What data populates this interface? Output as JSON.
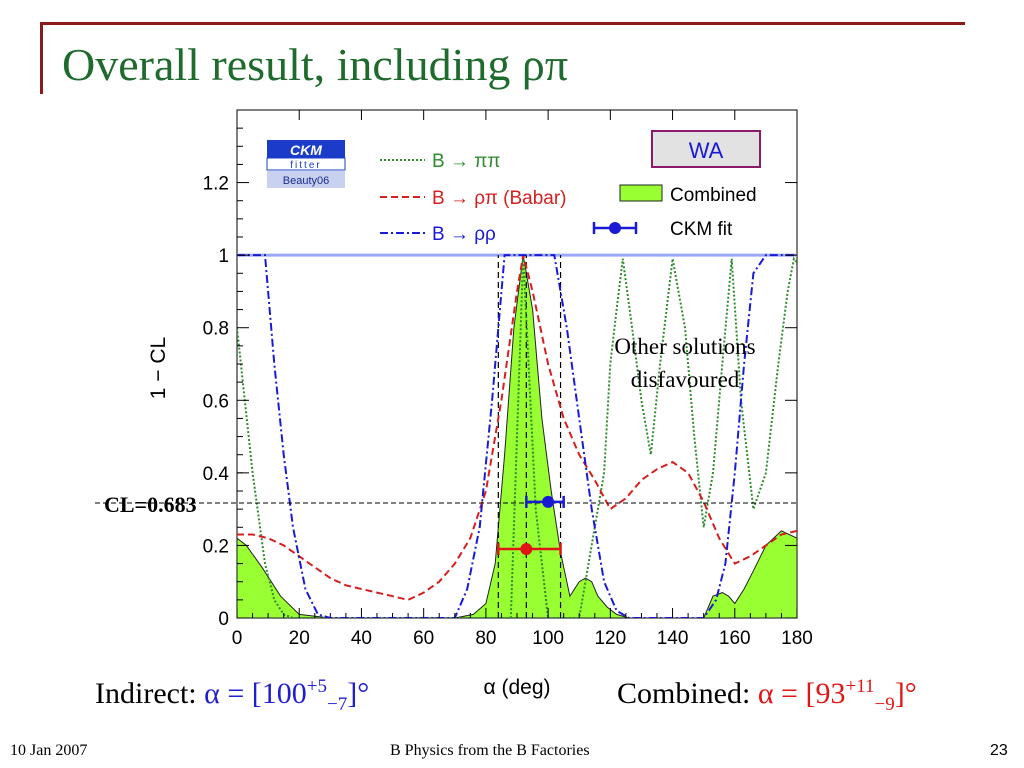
{
  "slide": {
    "title": "Overall result, including ρπ",
    "cl_label": "CL=0.683",
    "annotation_line1": "Other solutions",
    "annotation_line2": "disfavoured",
    "indirect": {
      "label": "Indirect: ",
      "alpha": "α = [100",
      "plus": "+5",
      "minus": "−7",
      "close": "]°"
    },
    "combined": {
      "label": "Combined: ",
      "alpha": "α = [93",
      "plus": "+11",
      "minus": "−9",
      "close": "]°"
    },
    "footer_date": "10 Jan 2007",
    "footer_center": "B Physics from the B Factories",
    "page_number": "23"
  },
  "chart_data": {
    "type": "line",
    "xlabel": "α   (deg)",
    "ylabel": "1 − CL",
    "xlim": [
      0,
      180
    ],
    "ylim": [
      0,
      1.4
    ],
    "x_ticks": [
      0,
      20,
      40,
      60,
      80,
      100,
      120,
      140,
      160,
      180
    ],
    "y_ticks": [
      0,
      0.2,
      0.4,
      0.6,
      0.8,
      1,
      1.2
    ],
    "y_tick_labels": [
      "0",
      "0.2",
      "0.4",
      "0.6",
      "0.8",
      "1",
      "1.2"
    ],
    "cl_level": 0.317,
    "logo": {
      "line1": "CKM",
      "line2": "fitter",
      "line3": "Beauty06"
    },
    "wa_label": "WA",
    "legend_placement": "top",
    "legend": [
      {
        "name": "B → ππ",
        "style": "dotted",
        "color": "#2e8b2e"
      },
      {
        "name": "B → ρπ (Babar)",
        "style": "dashed",
        "color": "#d42020"
      },
      {
        "name": "B → ρρ",
        "style": "dashdot",
        "color": "#1a1ad4"
      },
      {
        "name": "Combined",
        "style": "fill",
        "color": "#99ff33"
      },
      {
        "name": "CKM fit",
        "style": "errorbar",
        "color": "#1a1ad4"
      }
    ],
    "series": [
      {
        "name": "B → ππ",
        "x": [
          0,
          5,
          9,
          12,
          15,
          18,
          88,
          92,
          96,
          100,
          110,
          118,
          120,
          122,
          124,
          127,
          130,
          133,
          136,
          140,
          144,
          147,
          150,
          153,
          156,
          159,
          162,
          166,
          170,
          174,
          177,
          179,
          180
        ],
        "y": [
          0.8,
          0.4,
          0.15,
          0.05,
          0.01,
          0,
          0,
          1,
          0.3,
          0,
          0,
          0.4,
          0.7,
          0.85,
          0.99,
          0.8,
          0.6,
          0.45,
          0.7,
          0.99,
          0.8,
          0.5,
          0.25,
          0.4,
          0.7,
          0.99,
          0.6,
          0.3,
          0.4,
          0.7,
          0.9,
          0.99,
          0.98
        ]
      },
      {
        "name": "B → ρπ (Babar)",
        "x": [
          0,
          5,
          10,
          15,
          20,
          25,
          30,
          35,
          40,
          45,
          50,
          55,
          60,
          65,
          70,
          75,
          80,
          85,
          90,
          92,
          95,
          100,
          105,
          110,
          115,
          120,
          125,
          130,
          135,
          140,
          145,
          150,
          155,
          160,
          165,
          170,
          175,
          180
        ],
        "y": [
          0.23,
          0.23,
          0.22,
          0.2,
          0.17,
          0.14,
          0.11,
          0.09,
          0.08,
          0.07,
          0.06,
          0.05,
          0.07,
          0.1,
          0.15,
          0.22,
          0.35,
          0.6,
          0.9,
          1,
          0.9,
          0.7,
          0.55,
          0.45,
          0.38,
          0.3,
          0.33,
          0.38,
          0.41,
          0.43,
          0.4,
          0.32,
          0.22,
          0.15,
          0.17,
          0.2,
          0.23,
          0.24
        ]
      },
      {
        "name": "B → ρρ",
        "x": [
          0,
          6,
          9,
          12,
          15,
          18,
          22,
          26,
          30,
          70,
          74,
          78,
          82,
          86,
          90,
          92,
          94,
          98,
          102,
          106,
          110,
          114,
          118,
          122,
          126,
          130,
          150,
          154,
          157,
          160,
          163,
          166,
          170,
          174,
          177,
          180
        ],
        "y": [
          1,
          1,
          1,
          0.7,
          0.45,
          0.25,
          0.08,
          0.01,
          0,
          0,
          0.08,
          0.25,
          0.6,
          1,
          1,
          1,
          1,
          1,
          1,
          0.8,
          0.55,
          0.3,
          0.1,
          0.02,
          0,
          0,
          0,
          0.05,
          0.15,
          0.4,
          0.7,
          0.95,
          1,
          1,
          1,
          1
        ]
      },
      {
        "name": "Combined",
        "x": [
          0,
          3,
          8,
          14,
          20,
          30,
          60,
          70,
          76,
          80,
          83,
          86,
          89,
          92,
          95,
          98,
          101,
          104,
          107,
          110,
          112,
          114,
          116,
          119,
          122,
          126,
          130,
          150,
          153,
          156,
          158,
          160,
          163,
          166,
          170,
          175,
          180
        ],
        "y": [
          0.22,
          0.2,
          0.14,
          0.06,
          0.01,
          0,
          0,
          0,
          0.01,
          0.04,
          0.15,
          0.45,
          0.8,
          1,
          0.85,
          0.55,
          0.35,
          0.18,
          0.06,
          0.1,
          0.11,
          0.1,
          0.06,
          0.03,
          0.01,
          0,
          0,
          0,
          0.06,
          0.07,
          0.06,
          0.04,
          0.08,
          0.13,
          0.2,
          0.24,
          0.22
        ]
      }
    ],
    "error_bars": [
      {
        "name": "CKM fit",
        "center": 100,
        "low": 93,
        "high": 105,
        "y": 0.32,
        "color": "#1a1ad4"
      },
      {
        "name": "Combined",
        "center": 93,
        "low": 84,
        "high": 104,
        "y": 0.19,
        "color": "#e01515"
      }
    ],
    "vertical_dashed_lines": [
      84,
      93,
      104
    ]
  }
}
